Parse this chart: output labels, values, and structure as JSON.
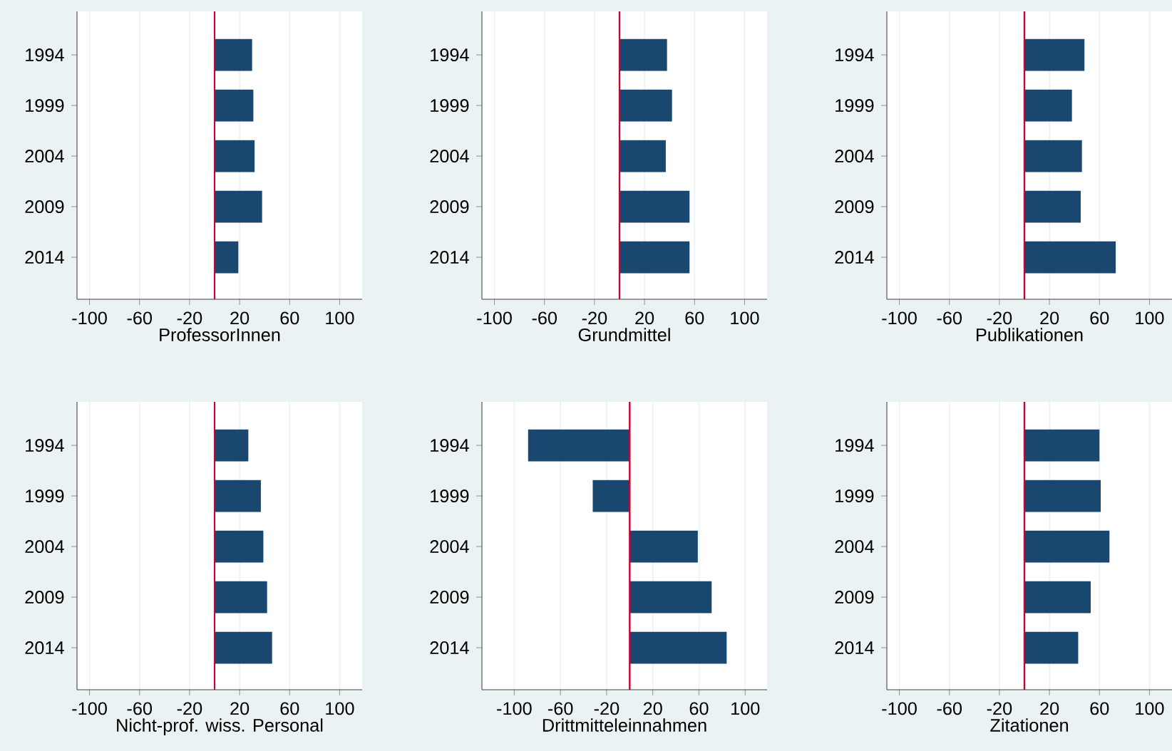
{
  "chart_data": [
    {
      "type": "bar",
      "orientation": "horizontal",
      "xlabel": "ProfessorInnen",
      "categories": [
        "1994",
        "1999",
        "2004",
        "2009",
        "2014"
      ],
      "values": [
        30,
        31,
        32,
        38,
        19
      ],
      "color": "#1a476f",
      "xlim": [
        -110,
        118
      ],
      "xticks": [
        -100,
        -60,
        -20,
        20,
        60,
        100
      ],
      "grid": "x",
      "ref_lines": [
        {
          "axis": "x",
          "value": 0,
          "color": "#c10534"
        }
      ]
    },
    {
      "type": "bar",
      "orientation": "horizontal",
      "xlabel": "Grundmittel",
      "categories": [
        "1994",
        "1999",
        "2004",
        "2009",
        "2014"
      ],
      "values": [
        38,
        42,
        37,
        56,
        56
      ],
      "color": "#1a476f",
      "xlim": [
        -110,
        118
      ],
      "xticks": [
        -100,
        -60,
        -20,
        20,
        60,
        100
      ],
      "grid": "x",
      "ref_lines": [
        {
          "axis": "x",
          "value": 0,
          "color": "#c10534"
        }
      ]
    },
    {
      "type": "bar",
      "orientation": "horizontal",
      "xlabel": "Publikationen",
      "categories": [
        "1994",
        "1999",
        "2004",
        "2009",
        "2014"
      ],
      "values": [
        48,
        38,
        46,
        45,
        73
      ],
      "color": "#1a476f",
      "xlim": [
        -110,
        118
      ],
      "xticks": [
        -100,
        -60,
        -20,
        20,
        60,
        100
      ],
      "grid": "x",
      "ref_lines": [
        {
          "axis": "x",
          "value": 0,
          "color": "#c10534"
        }
      ]
    },
    {
      "type": "bar",
      "orientation": "horizontal",
      "xlabel": "Nicht-prof. wiss. Personal",
      "categories": [
        "1994",
        "1999",
        "2004",
        "2009",
        "2014"
      ],
      "values": [
        27,
        37,
        39,
        42,
        46
      ],
      "color": "#1a476f",
      "xlim": [
        -110,
        118
      ],
      "xticks": [
        -100,
        -60,
        -20,
        20,
        60,
        100
      ],
      "grid": "x",
      "ref_lines": [
        {
          "axis": "x",
          "value": 0,
          "color": "#c10534"
        }
      ]
    },
    {
      "type": "bar",
      "orientation": "horizontal",
      "xlabel": "Drittmitteleinnahmen",
      "categories": [
        "1994",
        "1999",
        "2004",
        "2009",
        "2014"
      ],
      "values": [
        -88,
        -32,
        59,
        71,
        84
      ],
      "color": "#1a476f",
      "xlim": [
        -128,
        119
      ],
      "xticks": [
        -100,
        -60,
        -20,
        20,
        60,
        100
      ],
      "grid": "x",
      "ref_lines": [
        {
          "axis": "x",
          "value": 0,
          "color": "#c10534"
        }
      ]
    },
    {
      "type": "bar",
      "orientation": "horizontal",
      "xlabel": "Zitationen",
      "categories": [
        "1994",
        "1999",
        "2004",
        "2009",
        "2014"
      ],
      "values": [
        60,
        61,
        68,
        53,
        43
      ],
      "color": "#1a476f",
      "xlim": [
        -110,
        118
      ],
      "xticks": [
        -100,
        -60,
        -20,
        20,
        60,
        100
      ],
      "grid": "x",
      "ref_lines": [
        {
          "axis": "x",
          "value": 0,
          "color": "#c10534"
        }
      ]
    }
  ]
}
